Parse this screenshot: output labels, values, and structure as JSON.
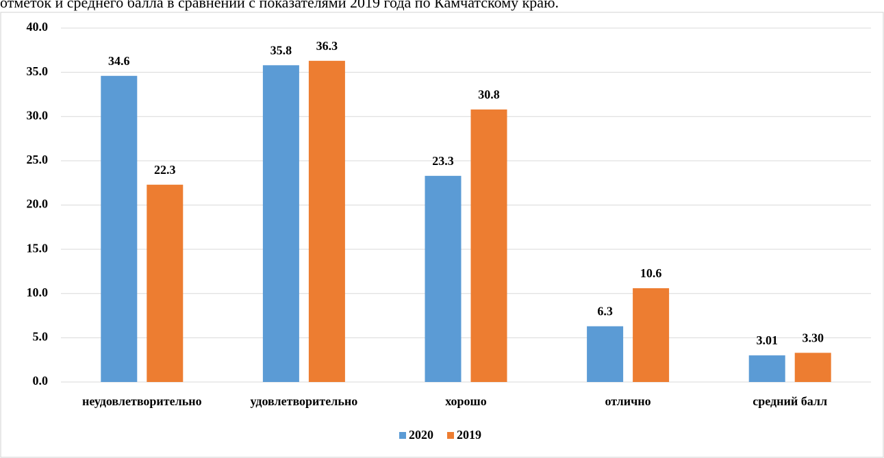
{
  "caption": "отметок и среднего балла в сравнении с показателями 2019 года по Камчатскому краю.",
  "chart_data": {
    "type": "bar",
    "categories": [
      "неудовлетворительно",
      "удовлетворительно",
      "хорошо",
      "отлично",
      "средний балл"
    ],
    "series": [
      {
        "name": "2020",
        "color": "#5b9bd5",
        "values": [
          34.6,
          35.8,
          23.3,
          6.3,
          3.01
        ],
        "value_labels": [
          "34.6",
          "35.8",
          "23.3",
          "6.3",
          "3.01"
        ]
      },
      {
        "name": "2019",
        "color": "#ed7d31",
        "values": [
          22.3,
          36.3,
          30.8,
          10.6,
          3.3
        ],
        "value_labels": [
          "22.3",
          "36.3",
          "30.8",
          "10.6",
          "3.30"
        ]
      }
    ],
    "ylim": [
      0,
      40
    ],
    "yticks": [
      {
        "value": 0,
        "label": "0.0"
      },
      {
        "value": 5,
        "label": "5.0"
      },
      {
        "value": 10,
        "label": "10.0"
      },
      {
        "value": 15,
        "label": "15.0"
      },
      {
        "value": 20,
        "label": "20.0"
      },
      {
        "value": 25,
        "label": "25.0"
      },
      {
        "value": 30,
        "label": "30.0"
      },
      {
        "value": 35,
        "label": "35.0"
      },
      {
        "value": 40,
        "label": "40.0"
      }
    ],
    "grid": true,
    "legend": "bottom"
  }
}
